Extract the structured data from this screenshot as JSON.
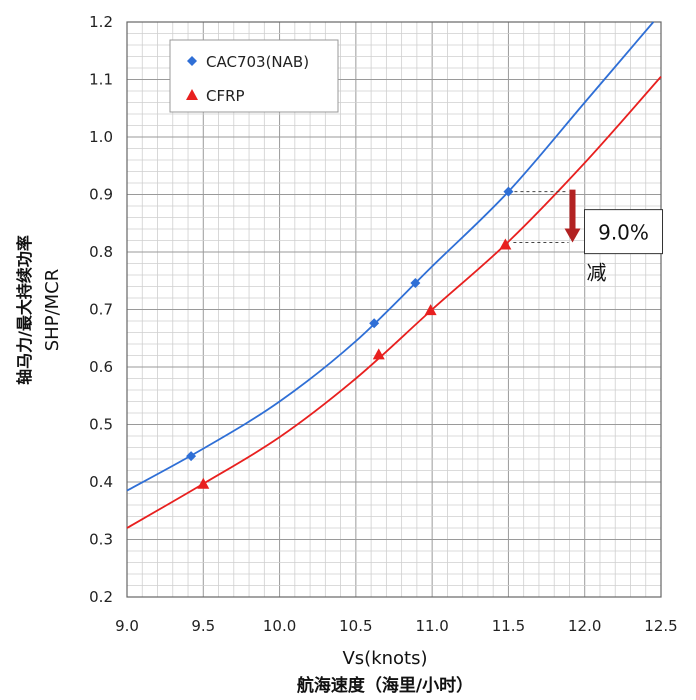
{
  "chart_data": {
    "type": "line",
    "xlabel": "Vs(knots)",
    "xlabel_sub": "航海速度（海里/小时）",
    "ylabel": "SHP/MCR",
    "ylabel_sub": "轴马力/最大持续功率",
    "xlim": [
      9.0,
      12.5
    ],
    "ylim": [
      0.2,
      1.2
    ],
    "x_ticks": [
      "9.0",
      "9.5",
      "10.0",
      "10.5",
      "11.0",
      "11.5",
      "12.0",
      "12.5"
    ],
    "y_ticks": [
      "0.2",
      "0.3",
      "0.4",
      "0.5",
      "0.6",
      "0.7",
      "0.8",
      "0.9",
      "1.0",
      "1.1",
      "1.2"
    ],
    "grid": true,
    "legend_position": "top-left",
    "series": [
      {
        "name": "CAC703(NAB)",
        "color": "#2f6fd6",
        "marker": "diamond",
        "points": [
          [
            9.42,
            0.445
          ],
          [
            10.62,
            0.676
          ],
          [
            10.89,
            0.746
          ],
          [
            11.5,
            0.905
          ]
        ],
        "curve": [
          [
            9.0,
            0.385
          ],
          [
            9.5,
            0.458
          ],
          [
            10.0,
            0.54
          ],
          [
            10.5,
            0.645
          ],
          [
            11.0,
            0.775
          ],
          [
            11.5,
            0.905
          ],
          [
            12.0,
            1.06
          ],
          [
            12.45,
            1.2
          ]
        ]
      },
      {
        "name": "CFRP",
        "color": "#e8201f",
        "marker": "triangle",
        "points": [
          [
            9.5,
            0.397
          ],
          [
            10.65,
            0.622
          ],
          [
            10.99,
            0.699
          ],
          [
            11.48,
            0.813
          ]
        ],
        "curve": [
          [
            9.0,
            0.32
          ],
          [
            9.5,
            0.397
          ],
          [
            10.0,
            0.478
          ],
          [
            10.5,
            0.58
          ],
          [
            11.0,
            0.7
          ],
          [
            11.5,
            0.818
          ],
          [
            12.0,
            0.955
          ],
          [
            12.5,
            1.105
          ]
        ]
      }
    ],
    "annotation": {
      "label": "9.0%",
      "sublabel": "减",
      "x": 11.92,
      "y_from": 0.905,
      "y_to": 0.82,
      "arrow_color": "#b22222"
    }
  }
}
